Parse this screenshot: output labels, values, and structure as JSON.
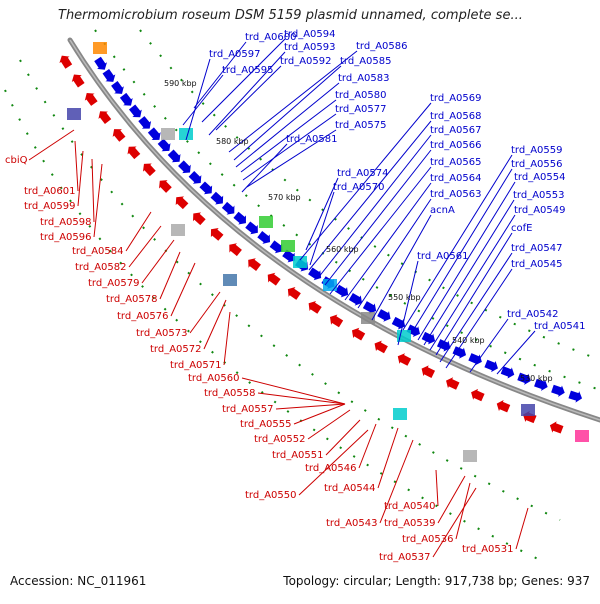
{
  "title": "Thermomicrobium roseum DSM 5159 plasmid unnamed, complete se...",
  "footer": {
    "accession": "Accession: NC_011961",
    "summary": "Topology: circular; Length: 917,738 bp; Genes: 937"
  },
  "colors": {
    "forward": "#0000dd",
    "reverse": "#dd0000",
    "backbone": "#888888",
    "tick": "#118811",
    "label_forward": "#0000cc",
    "label_reverse": "#cc0000"
  },
  "kbp_labels": [
    "590 kbp",
    "580 kbp",
    "570 kbp",
    "560 kbp",
    "550 kbp",
    "540 kbp",
    "530 kbp"
  ],
  "forward_labels": [
    "trd_A0600",
    "trd_A0594",
    "trd_A0597",
    "trd_A0593",
    "trd_A0595",
    "trd_A0592",
    "trd_A0586",
    "trd_A0585",
    "trd_A0583",
    "trd_A0580",
    "trd_A0577",
    "trd_A0575",
    "trd_A0581",
    "trd_A0569",
    "trd_A0568",
    "trd_A0567",
    "trd_A0566",
    "trd_A0565",
    "trd_A0574",
    "trd_A0564",
    "trd_A0570",
    "trd_A0563",
    "acnA",
    "trd_A0559",
    "trd_A0556",
    "trd_A0554",
    "trd_A0553",
    "trd_A0549",
    "cofE",
    "trd_A0561",
    "trd_A0547",
    "trd_A0545",
    "trd_A0542",
    "trd_A0541"
  ],
  "reverse_labels": [
    "cbiQ",
    "trd_A0601",
    "trd_A0599",
    "trd_A0598",
    "trd_A0596",
    "trd_A0584",
    "trd_A0582",
    "trd_A0579",
    "trd_A0578",
    "trd_A0576",
    "trd_A0573",
    "trd_A0572",
    "trd_A0571",
    "trd_A0560",
    "trd_A0558",
    "trd_A0557",
    "trd_A0555",
    "trd_A0552",
    "trd_A0551",
    "trd_A0546",
    "trd_A0544",
    "trd_A0550",
    "trd_A0540",
    "trd_A0543",
    "trd_A0539",
    "trd_A0536",
    "trd_A0537",
    "trd_A0531"
  ]
}
